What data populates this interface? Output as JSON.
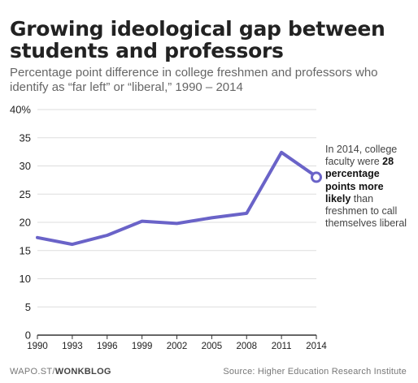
{
  "header": {
    "title": "Growing ideological gap between students and professors",
    "subtitle": "Percentage point difference in college freshmen and professors who identify as “far left” or “liberal,” 1990 – 2014"
  },
  "annotation": {
    "part1": "In 2014, college faculty were ",
    "bold": "28 percentage points more likely",
    "part2": " than freshmen to call themselves liberal"
  },
  "footer": {
    "left_prefix": "WAPO.ST/",
    "left_brand": "WONKBLOG",
    "source": "Source: Higher Education Research Institute"
  },
  "colors": {
    "line": "#6a63c8",
    "axis": "#333333",
    "grid": "#dddddd"
  },
  "chart_data": {
    "type": "line",
    "title": "Growing ideological gap between students and professors",
    "subtitle": "Percentage point difference in college freshmen and professors who identify as “far left” or “liberal,” 1990 – 2014",
    "x": [
      1990,
      1993,
      1996,
      1999,
      2002,
      2005,
      2008,
      2011,
      2014
    ],
    "x_tick_labels": [
      "1990",
      "1993",
      "1996",
      "1999",
      "2002",
      "2005",
      "2008",
      "2011",
      "2014"
    ],
    "series": [
      {
        "values": [
          17.3,
          16.1,
          17.7,
          20.2,
          19.8,
          20.8,
          21.6,
          32.4,
          28.1
        ]
      }
    ],
    "ylim": [
      0,
      40
    ],
    "y_ticks": [
      0,
      5,
      10,
      15,
      20,
      25,
      30,
      35,
      40
    ],
    "y_tick_labels": [
      "0",
      "5",
      "10",
      "15",
      "20",
      "25",
      "30",
      "35",
      "40%"
    ],
    "grid": true,
    "xlabel": "",
    "ylabel": "",
    "highlight": {
      "x": 2014,
      "y": 28
    }
  }
}
